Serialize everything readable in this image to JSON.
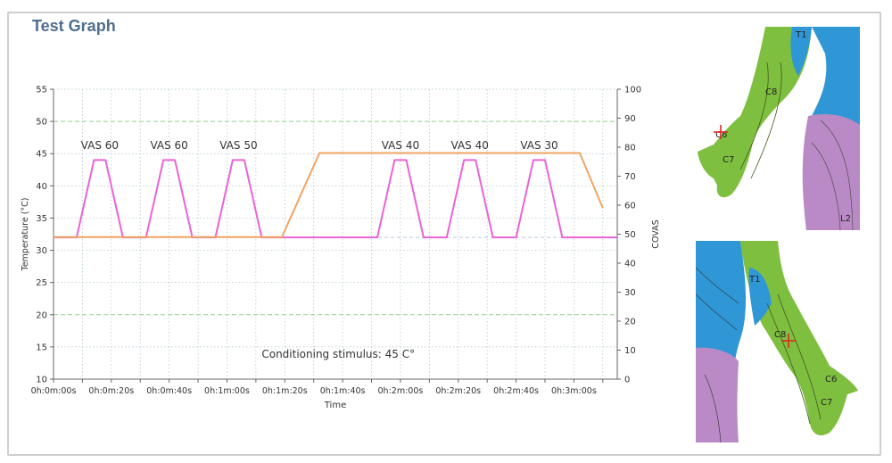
{
  "panel": {
    "title": "Test Graph"
  },
  "colors": {
    "temperature_series": "#ea63d8",
    "covas_series": "#f2a463",
    "grid": "#a8c0cc",
    "green_threshold": "#8fd08f",
    "bg_line": "#b9c6e0",
    "skin_green": "#7fbf3f",
    "skin_blue": "#2f97d6",
    "skin_purple": "#b98ac5"
  },
  "chart_data": {
    "type": "line",
    "xlabel": "Time",
    "ylabel_left": "Temperature (°C)",
    "ylabel_right": "COVAS",
    "x_ticks": [
      "0h:0m:00s",
      "0h:0m:20s",
      "0h:0m:40s",
      "0h:1m:00s",
      "0h:1m:20s",
      "0h:1m:40s",
      "0h:2m:00s",
      "0h:2m:20s",
      "0h:2m:40s",
      "0h:3m:00s"
    ],
    "x_range_seconds": [
      0,
      195
    ],
    "y_left_range": [
      10,
      55
    ],
    "y_left_ticks": [
      10,
      15,
      20,
      25,
      30,
      35,
      40,
      45,
      50,
      55
    ],
    "y_right_range": [
      0,
      100
    ],
    "y_right_ticks": [
      0,
      10,
      20,
      30,
      40,
      50,
      60,
      70,
      80,
      90,
      100
    ],
    "grid": true,
    "reference_lines_left": [
      20,
      50
    ],
    "series": [
      {
        "axis": "left",
        "x": [
          0,
          8,
          14,
          18,
          24,
          30,
          32,
          38,
          42,
          48,
          54,
          56,
          62,
          66,
          72,
          78,
          80,
          90,
          100,
          112,
          118,
          122,
          128,
          134,
          136,
          142,
          146,
          152,
          158,
          160,
          166,
          170,
          176,
          182,
          184,
          190,
          195
        ],
        "values": [
          32,
          32,
          44,
          44,
          32,
          32,
          32,
          44,
          44,
          32,
          32,
          32,
          44,
          44,
          32,
          32,
          32,
          32,
          32,
          32,
          44,
          44,
          32,
          32,
          32,
          44,
          44,
          32,
          32,
          32,
          44,
          44,
          32,
          32,
          32,
          32,
          32
        ]
      },
      {
        "axis": "right",
        "x": [
          0,
          79,
          92,
          110,
          130,
          150,
          170,
          182,
          190
        ],
        "values": [
          49,
          49,
          78,
          78,
          78,
          78,
          78,
          78,
          59
        ]
      }
    ],
    "annotations": [
      {
        "text": "VAS 60",
        "x": 16
      },
      {
        "text": "VAS 60",
        "x": 40
      },
      {
        "text": "VAS 50",
        "x": 64
      },
      {
        "text": "VAS 40",
        "x": 120
      },
      {
        "text": "VAS 40",
        "x": 144
      },
      {
        "text": "VAS 30",
        "x": 168
      }
    ],
    "note": "Conditioning stimulus: 45 C°"
  },
  "dermatomes": {
    "top": [
      "T1",
      "C8",
      "C6",
      "C7",
      "L2"
    ],
    "bottom": [
      "T1",
      "C8",
      "C6",
      "C7"
    ]
  }
}
